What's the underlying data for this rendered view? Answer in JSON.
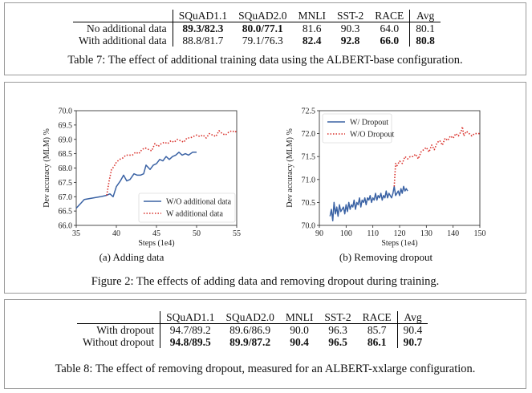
{
  "table7": {
    "columns": [
      "SQuAD1.1",
      "SQuAD2.0",
      "MNLI",
      "SST-2",
      "RACE",
      "Avg"
    ],
    "rows": [
      {
        "label": "No additional data",
        "cells": [
          {
            "v": "89.3/82.3",
            "bold": true
          },
          {
            "v": "80.0/77.1",
            "bold": true
          },
          {
            "v": "81.6",
            "bold": false
          },
          {
            "v": "90.3",
            "bold": false
          },
          {
            "v": "64.0",
            "bold": false
          },
          {
            "v": "80.1",
            "bold": false
          }
        ]
      },
      {
        "label": "With additional data",
        "cells": [
          {
            "v": "88.8/81.7",
            "bold": false
          },
          {
            "v": "79.1/76.3",
            "bold": false
          },
          {
            "v": "82.4",
            "bold": true
          },
          {
            "v": "92.8",
            "bold": true
          },
          {
            "v": "66.0",
            "bold": true
          },
          {
            "v": "80.8",
            "bold": true
          }
        ]
      }
    ],
    "caption": "Table 7: The effect of additional training data using the ALBERT-base configuration."
  },
  "figure2": {
    "caption": "Figure 2: The effects of adding data and removing dropout during training.",
    "subcaption_a": "(a) Adding data",
    "subcaption_b": "(b) Removing dropout"
  },
  "chart_data": [
    {
      "type": "line",
      "xlabel": "Steps (1e4)",
      "ylabel": "Dev accuracy (MLM) %",
      "xlim": [
        35,
        55
      ],
      "ylim": [
        66.0,
        70.0
      ],
      "xticks": [
        "35",
        "40",
        "45",
        "50",
        "55"
      ],
      "yticks": [
        "66.0",
        "66.5",
        "67.0",
        "67.5",
        "68.0",
        "68.5",
        "69.0",
        "69.5",
        "70.0"
      ],
      "legend_position": "lower-right",
      "series": [
        {
          "name": "W/O additional data",
          "color": "#3a62a4",
          "style": "solid",
          "x": [
            35,
            35.5,
            36,
            37,
            38,
            38.8,
            39.2,
            39.6,
            40,
            40.5,
            40.9,
            41.3,
            41.7,
            42.2,
            42.6,
            43,
            43.4,
            43.7,
            44.2,
            44.6,
            45,
            45.4,
            45.8,
            46.2,
            46.6,
            47,
            47.4,
            47.8,
            48.2,
            48.6,
            49,
            49.5,
            50
          ],
          "y": [
            66.6,
            66.75,
            66.9,
            66.95,
            67.0,
            67.05,
            67.1,
            67.0,
            67.35,
            67.55,
            67.75,
            67.55,
            67.6,
            67.8,
            67.75,
            67.75,
            67.8,
            68.1,
            67.95,
            68.1,
            68.15,
            68.3,
            68.25,
            68.4,
            68.3,
            68.4,
            68.45,
            68.55,
            68.45,
            68.5,
            68.45,
            68.55,
            68.55
          ]
        },
        {
          "name": "W additional data",
          "color": "#d9302a",
          "style": "dotted",
          "x": [
            38.8,
            39.1,
            39.4,
            39.7,
            40,
            40.4,
            40.8,
            41.2,
            41.6,
            42,
            42.4,
            42.8,
            43.2,
            43.6,
            44,
            44.4,
            44.8,
            45.2,
            45.6,
            46,
            46.4,
            46.8,
            47.2,
            47.6,
            48,
            48.4,
            48.8,
            49.2,
            49.6,
            50,
            50.4,
            50.8,
            51.2,
            51.6,
            52,
            52.4,
            52.8,
            53.2,
            53.6,
            54,
            54.4,
            54.8,
            55
          ],
          "y": [
            67.05,
            67.55,
            67.95,
            68.05,
            68.2,
            68.3,
            68.35,
            68.45,
            68.45,
            68.45,
            68.55,
            68.5,
            68.65,
            68.7,
            68.65,
            68.6,
            68.85,
            68.75,
            68.85,
            68.9,
            68.85,
            68.95,
            68.9,
            69.0,
            68.95,
            68.9,
            69.05,
            69.05,
            69.1,
            69.15,
            69.1,
            69.15,
            69.05,
            69.2,
            69.15,
            69.1,
            69.3,
            69.2,
            69.15,
            69.25,
            69.3,
            69.25,
            69.3
          ]
        }
      ]
    },
    {
      "type": "line",
      "xlabel": "Steps (1e4)",
      "ylabel": "Dev accuracy (MLM) %",
      "xlim": [
        90,
        150
      ],
      "ylim": [
        70.0,
        72.5
      ],
      "xticks": [
        "90",
        "100",
        "110",
        "120",
        "130",
        "140",
        "150"
      ],
      "yticks": [
        "70.0",
        "70.5",
        "71.0",
        "71.5",
        "72.0",
        "72.5"
      ],
      "legend_position": "top-left",
      "series": [
        {
          "name": "W/ Dropout",
          "color": "#3a62a4",
          "style": "solid",
          "x": [
            94,
            94.5,
            95,
            95.5,
            96,
            96.5,
            97,
            97.5,
            98,
            98.5,
            99,
            99.5,
            100,
            100.5,
            101,
            101.5,
            102,
            102.5,
            103,
            103.5,
            104,
            104.5,
            105,
            105.5,
            106,
            106.5,
            107,
            107.5,
            108,
            108.5,
            109,
            109.5,
            110,
            110.5,
            111,
            111.5,
            112,
            112.5,
            113,
            113.5,
            114,
            114.5,
            115,
            115.5,
            116,
            116.5,
            117,
            117.5,
            118,
            118.5,
            119,
            119.5,
            120,
            120.5,
            121,
            121.5,
            122,
            122.5,
            123
          ],
          "y": [
            70.2,
            70.35,
            70.1,
            70.5,
            70.25,
            70.4,
            70.2,
            70.45,
            70.3,
            70.35,
            70.4,
            70.25,
            70.45,
            70.3,
            70.5,
            70.35,
            70.45,
            70.4,
            70.55,
            70.35,
            70.5,
            70.45,
            70.6,
            70.4,
            70.55,
            70.5,
            70.6,
            70.45,
            70.6,
            70.55,
            70.65,
            70.5,
            70.6,
            70.55,
            70.7,
            70.55,
            70.65,
            70.6,
            70.7,
            70.55,
            70.65,
            70.6,
            70.75,
            70.6,
            70.7,
            70.65,
            70.6,
            70.7,
            70.85,
            70.65,
            70.7,
            70.75,
            70.65,
            70.8,
            70.7,
            70.85,
            70.75,
            70.8,
            70.75
          ]
        },
        {
          "name": "W/O Dropout",
          "color": "#d9302a",
          "style": "dotted",
          "x": [
            118,
            118.5,
            119,
            120,
            121,
            122,
            123,
            124,
            125,
            126,
            127,
            128,
            129,
            130,
            131,
            132,
            133,
            134,
            135,
            136,
            137,
            138,
            139,
            140,
            141,
            142,
            143,
            143.5,
            144,
            145,
            146,
            147,
            148,
            149,
            150
          ],
          "y": [
            70.85,
            71.35,
            71.3,
            71.4,
            71.35,
            71.5,
            71.45,
            71.5,
            71.5,
            71.55,
            71.45,
            71.6,
            71.65,
            71.7,
            71.6,
            71.75,
            71.65,
            71.8,
            71.85,
            71.75,
            71.9,
            71.85,
            71.95,
            71.9,
            72.0,
            71.95,
            72.05,
            72.15,
            71.95,
            72.05,
            72.0,
            71.95,
            72.0,
            72.0,
            72.0
          ]
        }
      ]
    }
  ],
  "table8": {
    "columns": [
      "SQuAD1.1",
      "SQuAD2.0",
      "MNLI",
      "SST-2",
      "RACE",
      "Avg"
    ],
    "rows": [
      {
        "label": "With dropout",
        "cells": [
          {
            "v": "94.7/89.2",
            "bold": false
          },
          {
            "v": "89.6/86.9",
            "bold": false
          },
          {
            "v": "90.0",
            "bold": false
          },
          {
            "v": "96.3",
            "bold": false
          },
          {
            "v": "85.7",
            "bold": false
          },
          {
            "v": "90.4",
            "bold": false
          }
        ]
      },
      {
        "label": "Without dropout",
        "cells": [
          {
            "v": "94.8/89.5",
            "bold": true
          },
          {
            "v": "89.9/87.2",
            "bold": true
          },
          {
            "v": "90.4",
            "bold": true
          },
          {
            "v": "96.5",
            "bold": true
          },
          {
            "v": "86.1",
            "bold": true
          },
          {
            "v": "90.7",
            "bold": true
          }
        ]
      }
    ],
    "caption": "Table 8: The effect of removing dropout, measured for an ALBERT-xxlarge configuration."
  }
}
